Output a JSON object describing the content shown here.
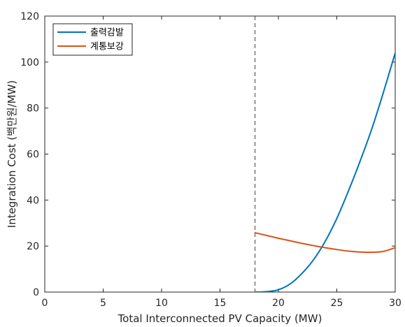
{
  "chart_data": {
    "type": "line",
    "xlabel": "Total Interconnected PV Capacity (MW)",
    "ylabel": "Integration Cost (백만원/MW)",
    "xlim": [
      0,
      30
    ],
    "ylim": [
      0,
      120
    ],
    "xticks": [
      0,
      5,
      10,
      15,
      20,
      25,
      30
    ],
    "yticks": [
      0,
      20,
      40,
      60,
      80,
      100,
      120
    ],
    "grid": false,
    "legend_position": "top-left",
    "vline": {
      "x": 18,
      "style": "dashed",
      "color": "#404040"
    },
    "series": [
      {
        "name": "출력감발",
        "color": "#0072BD",
        "x": [
          18,
          19,
          20,
          21,
          22,
          23,
          24,
          25,
          26,
          27,
          28,
          29,
          30
        ],
        "y": [
          0,
          0.2,
          1,
          3.5,
          8,
          14,
          22,
          32,
          44,
          57,
          71,
          87,
          104
        ]
      },
      {
        "name": "계통보강",
        "color": "#D95319",
        "x": [
          18,
          19,
          20,
          21,
          22,
          23,
          24,
          25,
          26,
          27,
          28,
          29,
          30
        ],
        "y": [
          25.8,
          24.6,
          23.4,
          22.3,
          21.2,
          20.2,
          19.3,
          18.5,
          17.8,
          17.4,
          17.3,
          17.7,
          19.3
        ]
      }
    ]
  }
}
